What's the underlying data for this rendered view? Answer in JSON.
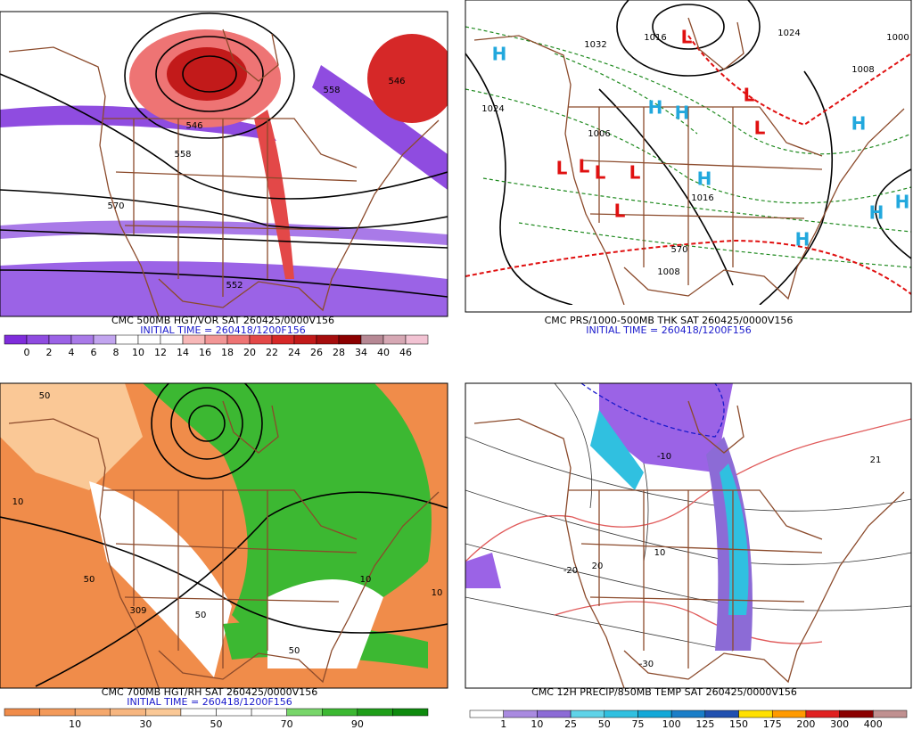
{
  "panels": [
    {
      "caption": "CMC 500MB HGT/VOR SAT 260425/0000V156",
      "initial_time": "INITIAL TIME = 260418/1200F156",
      "labels": [
        "546",
        "558",
        "570",
        "552",
        "558",
        "546"
      ],
      "colorbar": {
        "labels": [
          0,
          2,
          4,
          6,
          8,
          10,
          12,
          14,
          16,
          18,
          20,
          22,
          24,
          26,
          28,
          34,
          40,
          46
        ],
        "colors": [
          "#7f2ddb",
          "#8f4ce0",
          "#9b63e6",
          "#a97ae8",
          "#c2a5ef",
          "#ffffff",
          "#ffffff",
          "#ffffff",
          "#f7b8b8",
          "#f29696",
          "#ee7474",
          "#e34848",
          "#d62828",
          "#c21a1a",
          "#a50d0d",
          "#8b0000",
          "#b68894",
          "#d6a8b4",
          "#f2c3d3"
        ]
      }
    },
    {
      "caption": "CMC PRS/1000-500MB THK SAT 260425/0000V156",
      "initial_time": "INITIAL TIME = 260418/1200F156",
      "labels": [
        "H",
        "H",
        "H",
        "H",
        "H",
        "H",
        "H",
        "H",
        "L",
        "L",
        "L",
        "L",
        "L",
        "L",
        "L",
        "L",
        "1024",
        "1032",
        "1016",
        "1006",
        "1016",
        "1008",
        "1024",
        "1000",
        "1008",
        "570"
      ]
    },
    {
      "caption": "CMC 700MB HGT/RH SAT 260425/0000V156",
      "initial_time": "INITIAL TIME = 260418/1200F156",
      "labels": [
        "50",
        "10",
        "309",
        "50",
        "10",
        "50",
        "50",
        "10"
      ],
      "colorbar": {
        "labels": [
          10,
          30,
          50,
          70,
          90
        ],
        "colors": [
          "#f08c4a",
          "#f39a5a",
          "#f5a86c",
          "#f7b680",
          "#fac896",
          "#ffffff",
          "#ffffff",
          "#ffffff",
          "#78d66a",
          "#3cb832",
          "#1f9e1a",
          "#0e8a0e"
        ]
      }
    },
    {
      "caption": "CMC 12H PRECIP/850MB TEMP SAT 260425/0000V156",
      "labels": [
        "-10",
        "21",
        "-20",
        "-30",
        "20",
        "10"
      ],
      "colorbar": {
        "labels": [
          1,
          10,
          25,
          50,
          75,
          100,
          125,
          150,
          175,
          200,
          300,
          400
        ],
        "colors": [
          "#ffffff",
          "#a98ae0",
          "#8c6bd6",
          "#5fd3e8",
          "#30c0e0",
          "#12a8d8",
          "#1a7ec8",
          "#2050b0",
          "#ffe000",
          "#ff9a00",
          "#e02020",
          "#8b0000",
          "#c09090"
        ]
      }
    }
  ]
}
